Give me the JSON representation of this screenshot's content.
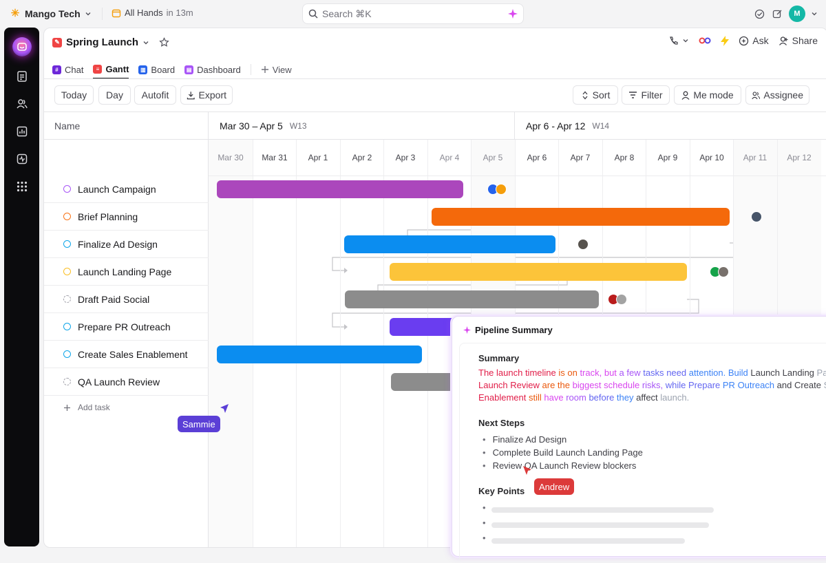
{
  "topbar": {
    "workspace": "Mango Tech",
    "meeting_title": "All Hands",
    "meeting_time": "in 13m",
    "search_placeholder": "Search ⌘K"
  },
  "page": {
    "title": "Spring Launch",
    "actions": {
      "ask": "Ask",
      "share": "Share"
    },
    "tabs": [
      {
        "label": "Chat",
        "color": "#6d28d9"
      },
      {
        "label": "Gantt",
        "color": "#ef4444"
      },
      {
        "label": "Board",
        "color": "#2563eb"
      },
      {
        "label": "Dashboard",
        "color": "#a855f7"
      }
    ],
    "add_view": "View"
  },
  "toolbar": {
    "today": "Today",
    "day": "Day",
    "autofit": "Autofit",
    "export": "Export",
    "sort": "Sort",
    "filter": "Filter",
    "me_mode": "Me mode",
    "assignee": "Assignee"
  },
  "gantt": {
    "name_header": "Name",
    "weeks": [
      {
        "range": "Mar 30 – Apr 5",
        "label": "W13"
      },
      {
        "range": "Apr 6 - Apr 12",
        "label": "W14"
      }
    ],
    "days": [
      "Mar 30",
      "Mar 31",
      "Apr 1",
      "Apr 2",
      "Apr 3",
      "Apr 4",
      "Apr 5",
      "Apr 6",
      "Apr 7",
      "Apr 8",
      "Apr 9",
      "Apr 10",
      "Apr 11",
      "Apr 12"
    ],
    "tasks": [
      {
        "name": "Launch Campaign",
        "status_color": "#a855f7",
        "bar_color": "#ab47bc"
      },
      {
        "name": "Brief Planning",
        "status_color": "#f97316",
        "bar_color": "#f4690b"
      },
      {
        "name": "Finalize Ad Design",
        "status_color": "#0ea5e9",
        "bar_color": "#0b8df0"
      },
      {
        "name": "Launch Landing Page",
        "status_color": "#fbbf24",
        "bar_color": "#fcc43a"
      },
      {
        "name": "Draft Paid Social",
        "status_color": "#a1a1aa",
        "bar_color": "#8c8c8c"
      },
      {
        "name": "Prepare PR Outreach",
        "status_color": "#0ea5e9",
        "bar_color": "#6a3df0"
      },
      {
        "name": "Create Sales Enablement",
        "status_color": "#0ea5e9",
        "bar_color": "#0b8df0"
      },
      {
        "name": "QA Launch Review",
        "status_color": "#a1a1aa",
        "bar_color": "#8c8c8c"
      }
    ],
    "add_task": "Add task"
  },
  "cursors": [
    {
      "name": "Sammie",
      "color": "#5b3fd6"
    },
    {
      "name": "Andrew",
      "color": "#dc3a3a"
    }
  ],
  "ai_panel": {
    "title": "Pipeline Summary",
    "summary_heading": "Summary",
    "summary_lines": [
      "The launch timeline is on track, but a few tasks need attention. Build Launch Landing Page a",
      "Launch Review are the biggest schedule risks, while Prepare PR Outreach and Create Sales",
      "Enablement still have room before they affect launch."
    ],
    "next_steps_heading": "Next Steps",
    "next_steps": [
      "Finalize Ad Design",
      "Complete Build Launch Landing Page",
      "Review QA Launch Review blockers"
    ],
    "key_points_heading": "Key Points"
  }
}
